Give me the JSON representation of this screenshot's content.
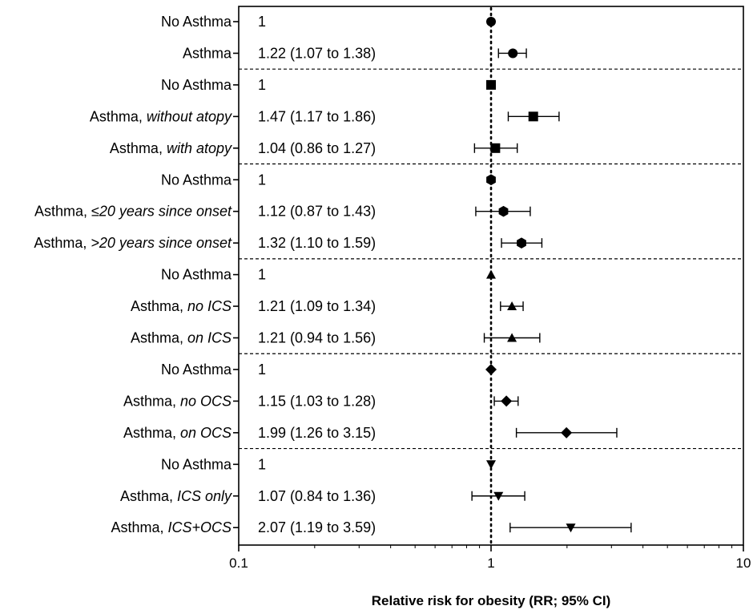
{
  "chart_data": {
    "type": "forest",
    "scale": "log",
    "xlim": [
      0.1,
      10
    ],
    "reference_line": 1,
    "x_ticks": [
      "0.1",
      "1",
      "10"
    ],
    "xlabel": "Relative risk for obesity (RR; 95% CI)",
    "groups": [
      {
        "marker": "circle",
        "rows": [
          {
            "label": "No Asthma",
            "label_italic": "",
            "estimate_text": "1",
            "rr": 1,
            "ci": null
          },
          {
            "label": "Asthma",
            "label_italic": "",
            "estimate_text": "1.22 (1.07 to 1.38)",
            "rr": 1.22,
            "ci": [
              1.07,
              1.38
            ]
          }
        ]
      },
      {
        "marker": "square",
        "rows": [
          {
            "label": "No Asthma",
            "label_italic": "",
            "estimate_text": "1",
            "rr": 1,
            "ci": null
          },
          {
            "label": "Asthma, ",
            "label_italic": "without atopy",
            "estimate_text": "1.47 (1.17 to 1.86)",
            "rr": 1.47,
            "ci": [
              1.17,
              1.86
            ]
          },
          {
            "label": "Asthma, ",
            "label_italic": "with atopy",
            "estimate_text": "1.04 (0.86 to 1.27)",
            "rr": 1.04,
            "ci": [
              0.86,
              1.27
            ]
          }
        ]
      },
      {
        "marker": "hexagon",
        "rows": [
          {
            "label": "No Asthma",
            "label_italic": "",
            "estimate_text": "1",
            "rr": 1,
            "ci": null
          },
          {
            "label": "Asthma, ",
            "label_italic": "≤20 years since onset",
            "estimate_text": "1.12 (0.87 to 1.43)",
            "rr": 1.12,
            "ci": [
              0.87,
              1.43
            ]
          },
          {
            "label": "Asthma, ",
            "label_italic": ">20 years since onset",
            "estimate_text": "1.32 (1.10 to 1.59)",
            "rr": 1.32,
            "ci": [
              1.1,
              1.59
            ]
          }
        ]
      },
      {
        "marker": "triangle-up",
        "rows": [
          {
            "label": "No Asthma",
            "label_italic": "",
            "estimate_text": "1",
            "rr": 1,
            "ci": null
          },
          {
            "label": "Asthma, ",
            "label_italic": "no ICS",
            "estimate_text": "1.21 (1.09 to 1.34)",
            "rr": 1.21,
            "ci": [
              1.09,
              1.34
            ]
          },
          {
            "label": "Asthma, ",
            "label_italic": "on ICS",
            "estimate_text": "1.21 (0.94 to 1.56)",
            "rr": 1.21,
            "ci": [
              0.94,
              1.56
            ]
          }
        ]
      },
      {
        "marker": "diamond",
        "rows": [
          {
            "label": "No Asthma",
            "label_italic": "",
            "estimate_text": "1",
            "rr": 1,
            "ci": null
          },
          {
            "label": "Asthma, ",
            "label_italic": "no OCS",
            "estimate_text": "1.15 (1.03 to 1.28)",
            "rr": 1.15,
            "ci": [
              1.03,
              1.28
            ]
          },
          {
            "label": "Asthma, ",
            "label_italic": "on OCS",
            "estimate_text": "1.99 (1.26 to 3.15)",
            "rr": 1.99,
            "ci": [
              1.26,
              3.15
            ]
          }
        ]
      },
      {
        "marker": "triangle-down",
        "rows": [
          {
            "label": "No Asthma",
            "label_italic": "",
            "estimate_text": "1",
            "rr": 1,
            "ci": null
          },
          {
            "label": "Asthma, ",
            "label_italic": "ICS only",
            "estimate_text": "1.07 (0.84 to 1.36)",
            "rr": 1.07,
            "ci": [
              0.84,
              1.36
            ]
          },
          {
            "label": "Asthma, ",
            "label_italic": "ICS+OCS",
            "estimate_text": "2.07 (1.19 to 3.59)",
            "rr": 2.07,
            "ci": [
              1.19,
              3.59
            ]
          }
        ]
      }
    ]
  }
}
